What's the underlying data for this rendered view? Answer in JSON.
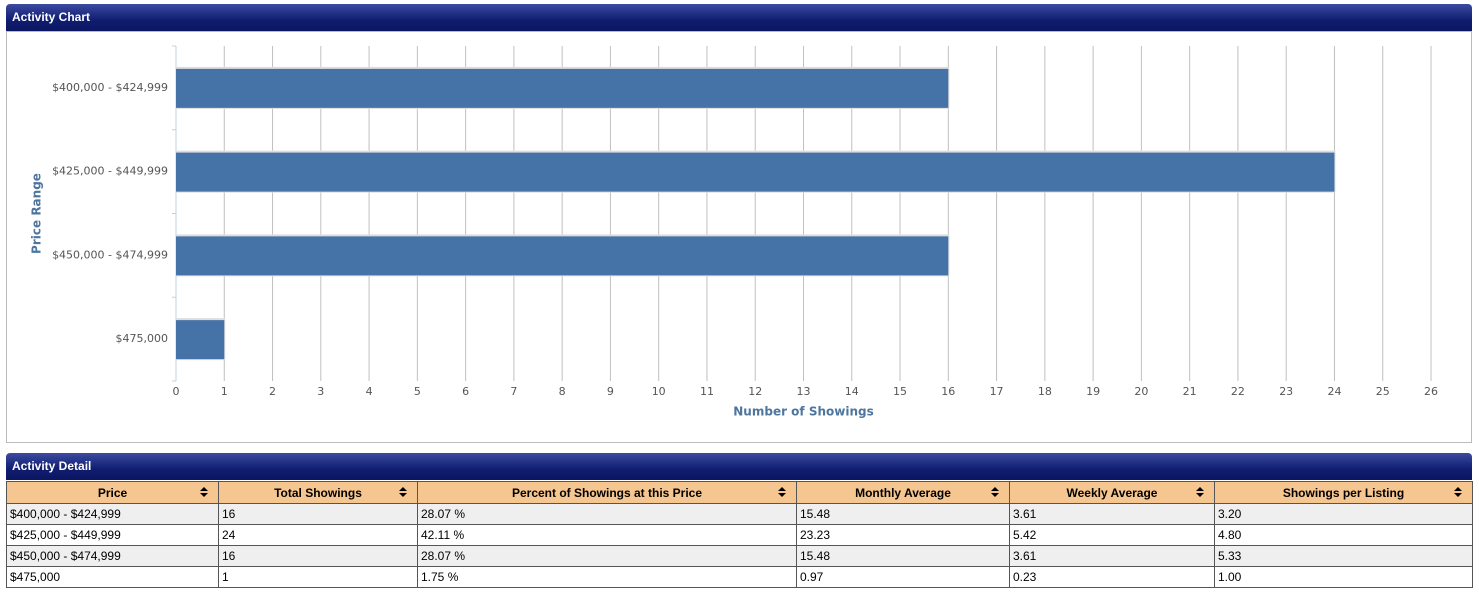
{
  "chart_panel": {
    "title": "Activity Chart"
  },
  "chart_data": {
    "type": "bar",
    "orientation": "horizontal",
    "categories": [
      "$400,000 - $424,999",
      "$425,000 - $449,999",
      "$450,000 - $474,999",
      "$475,000"
    ],
    "values": [
      16,
      24,
      16,
      1
    ],
    "color": "#4572a7",
    "xlabel": "Number of Showings",
    "ylabel": "Price Range",
    "xlim": [
      0,
      26
    ],
    "xticks": [
      0,
      1,
      2,
      3,
      4,
      5,
      6,
      7,
      8,
      9,
      10,
      11,
      12,
      13,
      14,
      15,
      16,
      17,
      18,
      19,
      20,
      21,
      22,
      23,
      24,
      25,
      26
    ],
    "grid": true
  },
  "detail_panel": {
    "title": "Activity Detail"
  },
  "table": {
    "columns": [
      "Price",
      "Total Showings",
      "Percent of Showings at this Price",
      "Monthly Average",
      "Weekly Average",
      "Showings per Listing"
    ],
    "rows": [
      [
        "$400,000 - $424,999",
        "16",
        "28.07 %",
        "15.48",
        "3.61",
        "3.20"
      ],
      [
        "$425,000 - $449,999",
        "24",
        "42.11 %",
        "23.23",
        "5.42",
        "4.80"
      ],
      [
        "$450,000 - $474,999",
        "16",
        "28.07 %",
        "15.48",
        "3.61",
        "5.33"
      ],
      [
        "$475,000",
        "1",
        "1.75 %",
        "0.97",
        "0.23",
        "1.00"
      ]
    ]
  }
}
